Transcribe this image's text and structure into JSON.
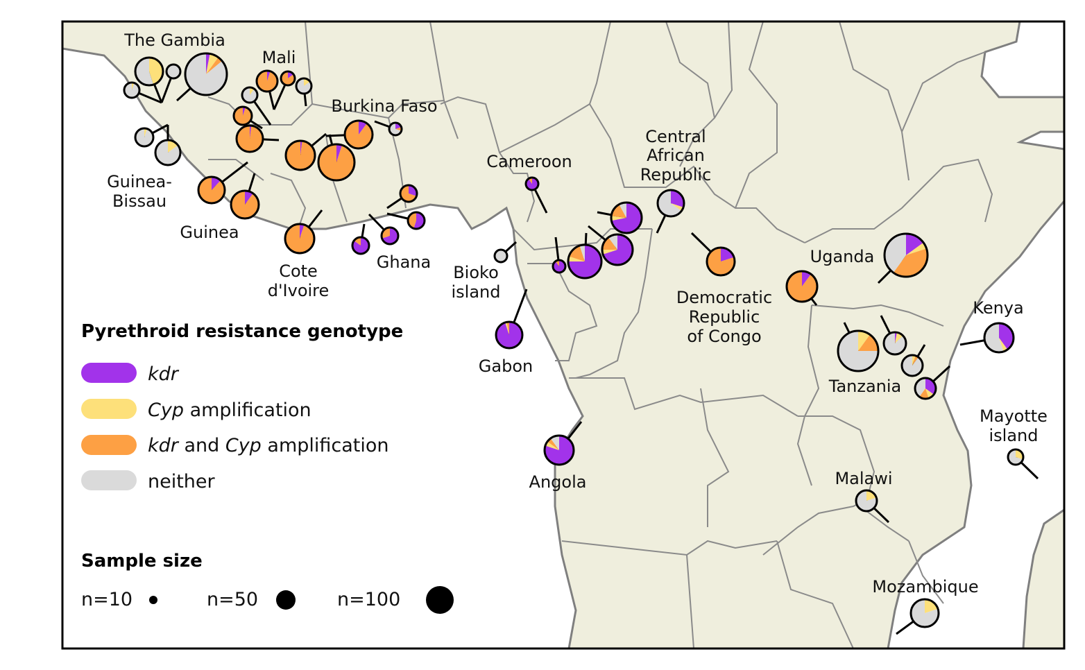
{
  "colors": {
    "kdr": "#a233ea",
    "cyp": "#fde07a",
    "both": "#fda044",
    "neither": "#dadada",
    "land": "#efeedd",
    "border": "#7f7f7f",
    "coast": "#7f7f7f"
  },
  "country_labels": {
    "gambia": "The Gambia",
    "mali": "Mali",
    "burkina": "Burkina Faso",
    "guinea_bissau_1": "Guinea-",
    "guinea_bissau_2": "Bissau",
    "guinea": "Guinea",
    "cote_1": "Cote",
    "cote_2": "d'Ivoire",
    "ghana": "Ghana",
    "bioko_1": "Bioko",
    "bioko_2": "island",
    "cameroon": "Cameroon",
    "car_1": "Central",
    "car_2": "African",
    "car_3": "Republic",
    "drc_1": "Democratic",
    "drc_2": "Republic",
    "drc_3": "of Congo",
    "gabon": "Gabon",
    "angola": "Angola",
    "uganda": "Uganda",
    "kenya": "Kenya",
    "tanzania": "Tanzania",
    "mayotte_1": "Mayotte",
    "mayotte_2": "island",
    "malawi": "Malawi",
    "mozambique": "Mozambique"
  },
  "legend": {
    "genotype_title": "Pyrethroid resistance genotype",
    "kdr": "kdr",
    "cyp_italic": "Cyp",
    "cyp_rest": " amplification",
    "both_kdr": "kdr",
    "both_and": " and ",
    "both_cyp": "Cyp",
    "both_rest": " amplification",
    "neither": "neither",
    "size_title": "Sample size",
    "n10": "n=10",
    "n50": "n=50",
    "n100": "n=100"
  },
  "sample_pies": [
    {
      "id": "gambia-1",
      "kdr": 0.0,
      "cyp": 0.45,
      "both": 0.0,
      "neither": 0.55
    },
    {
      "id": "gambia-2",
      "kdr": 0.0,
      "cyp": 0.0,
      "both": 0.0,
      "neither": 1.0
    },
    {
      "id": "gambia-3",
      "kdr": 0.0,
      "cyp": 0.05,
      "both": 0.0,
      "neither": 0.95
    },
    {
      "id": "gambia-4",
      "kdr": 0.03,
      "cyp": 0.07,
      "both": 0.04,
      "neither": 0.86
    },
    {
      "id": "mali-1",
      "kdr": 0.05,
      "cyp": 0.0,
      "both": 0.95,
      "neither": 0.0
    },
    {
      "id": "mali-2",
      "kdr": 0.15,
      "cyp": 0.0,
      "both": 0.85,
      "neither": 0.0
    },
    {
      "id": "mali-3",
      "kdr": 0.0,
      "cyp": 0.1,
      "both": 0.0,
      "neither": 0.9
    },
    {
      "id": "mali-4",
      "kdr": 0.0,
      "cyp": 0.15,
      "both": 0.0,
      "neither": 0.85
    },
    {
      "id": "mali-5",
      "kdr": 0.05,
      "cyp": 0.0,
      "both": 0.95,
      "neither": 0.0
    },
    {
      "id": "mali-6",
      "kdr": 0.02,
      "cyp": 0.0,
      "both": 0.98,
      "neither": 0.0
    },
    {
      "id": "gbissau-1",
      "kdr": 0.0,
      "cyp": 0.05,
      "both": 0.0,
      "neither": 0.95
    },
    {
      "id": "gbissau-2",
      "kdr": 0.0,
      "cyp": 0.15,
      "both": 0.0,
      "neither": 0.85
    },
    {
      "id": "guinea-1",
      "kdr": 0.12,
      "cyp": 0.0,
      "both": 0.88,
      "neither": 0.0
    },
    {
      "id": "guinea-2",
      "kdr": 0.1,
      "cyp": 0.0,
      "both": 0.9,
      "neither": 0.0
    },
    {
      "id": "civ-1",
      "kdr": 0.05,
      "cyp": 0.0,
      "both": 0.95,
      "neither": 0.0
    },
    {
      "id": "civ-2",
      "kdr": 0.02,
      "cyp": 0.0,
      "both": 0.98,
      "neither": 0.0
    },
    {
      "id": "bf-1",
      "kdr": 0.05,
      "cyp": 0.0,
      "both": 0.95,
      "neither": 0.0
    },
    {
      "id": "bf-2",
      "kdr": 0.1,
      "cyp": 0.0,
      "both": 0.9,
      "neither": 0.0
    },
    {
      "id": "bf-3",
      "kdr": 0.2,
      "cyp": 0.0,
      "both": 0.1,
      "neither": 0.7
    },
    {
      "id": "ghana-1",
      "kdr": 0.3,
      "cyp": 0.0,
      "both": 0.7,
      "neither": 0.0
    },
    {
      "id": "ghana-2",
      "kdr": 0.55,
      "cyp": 0.0,
      "both": 0.45,
      "neither": 0.0
    },
    {
      "id": "ghana-3",
      "kdr": 0.7,
      "cyp": 0.0,
      "both": 0.3,
      "neither": 0.0
    },
    {
      "id": "ghana-4",
      "kdr": 0.85,
      "cyp": 0.0,
      "both": 0.15,
      "neither": 0.0
    },
    {
      "id": "bioko-1",
      "kdr": 0.0,
      "cyp": 0.0,
      "both": 0.0,
      "neither": 1.0
    },
    {
      "id": "cameroon-1",
      "kdr": 0.9,
      "cyp": 0.0,
      "both": 0.1,
      "neither": 0.0
    },
    {
      "id": "cameroon-2",
      "kdr": 0.9,
      "cyp": 0.0,
      "both": 0.1,
      "neither": 0.0
    },
    {
      "id": "cameroon-3",
      "kdr": 0.75,
      "cyp": 0.05,
      "both": 0.15,
      "neither": 0.05
    },
    {
      "id": "cameroon-4",
      "kdr": 0.7,
      "cyp": 0.05,
      "both": 0.15,
      "neither": 0.1
    },
    {
      "id": "cameroon-5",
      "kdr": 0.72,
      "cyp": 0.05,
      "both": 0.15,
      "neither": 0.08
    },
    {
      "id": "car-1",
      "kdr": 0.3,
      "cyp": 0.05,
      "both": 0.0,
      "neither": 0.65
    },
    {
      "id": "drc-1",
      "kdr": 0.2,
      "cyp": 0.0,
      "both": 0.8,
      "neither": 0.0
    },
    {
      "id": "gabon-1",
      "kdr": 0.95,
      "cyp": 0.02,
      "both": 0.03,
      "neither": 0.0
    },
    {
      "id": "angola-1",
      "kdr": 0.8,
      "cyp": 0.05,
      "both": 0.05,
      "neither": 0.1
    },
    {
      "id": "uganda-1",
      "kdr": 0.1,
      "cyp": 0.0,
      "both": 0.9,
      "neither": 0.0
    },
    {
      "id": "uganda-2",
      "kdr": 0.15,
      "cyp": 0.05,
      "both": 0.4,
      "neither": 0.4
    },
    {
      "id": "kenya-1",
      "kdr": 0.4,
      "cyp": 0.05,
      "both": 0.0,
      "neither": 0.55
    },
    {
      "id": "tanzania-1",
      "kdr": 0.0,
      "cyp": 0.1,
      "both": 0.15,
      "neither": 0.75
    },
    {
      "id": "tanzania-2",
      "kdr": 0.03,
      "cyp": 0.1,
      "both": 0.0,
      "neither": 0.87
    },
    {
      "id": "tanzania-3",
      "kdr": 0.0,
      "cyp": 0.05,
      "both": 0.05,
      "neither": 0.9
    },
    {
      "id": "tanzania-4",
      "kdr": 0.35,
      "cyp": 0.1,
      "both": 0.15,
      "neither": 0.4
    },
    {
      "id": "mayotte-1",
      "kdr": 0.0,
      "cyp": 0.3,
      "both": 0.0,
      "neither": 0.7
    },
    {
      "id": "malawi-1",
      "kdr": 0.0,
      "cyp": 0.2,
      "both": 0.0,
      "neither": 0.8
    },
    {
      "id": "mozambique-1",
      "kdr": 0.0,
      "cyp": 0.2,
      "both": 0.0,
      "neither": 0.8
    }
  ]
}
